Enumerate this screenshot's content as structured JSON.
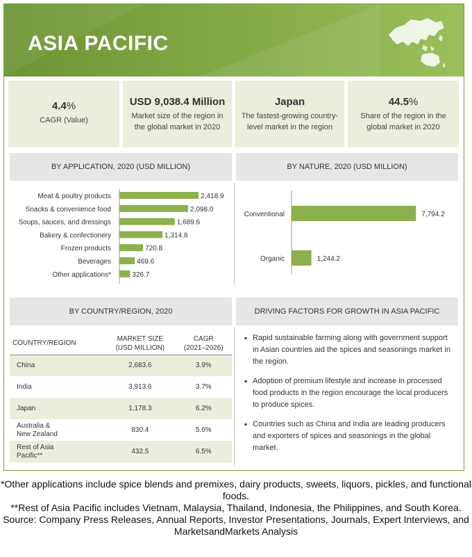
{
  "header": {
    "title": "ASIA PACIFIC"
  },
  "kpis": [
    {
      "value": "4.4",
      "unit": "%",
      "label": "CAGR (Value)"
    },
    {
      "value": "USD 9,038.4 Million",
      "unit": "",
      "label": "Market size of the region in the global market in 2020"
    },
    {
      "value": "Japan",
      "unit": "",
      "label": "The fastest-growing country-level market in the region"
    },
    {
      "value": "44.5",
      "unit": "%",
      "label": "Share of the region in the global market in 2020"
    }
  ],
  "application_chart": {
    "heading": "BY APPLICATION, 2020 (USD MILLION)",
    "bar_color": "#8cb04b"
  },
  "nature_chart": {
    "heading": "BY NATURE, 2020 (USD MILLION)",
    "bar_color": "#8cb04b"
  },
  "chart_data": [
    {
      "type": "bar",
      "orientation": "horizontal",
      "title": "BY APPLICATION, 2020 (USD MILLION)",
      "categories": [
        "Meat & poultry products",
        "Snacks & convenience food",
        "Soups, sauces, and dressings",
        "Bakery & confectionery",
        "Frozen products",
        "Beverages",
        "Other applications*"
      ],
      "values": [
        2418.9,
        2098.0,
        1689.6,
        1314.8,
        720.8,
        469.6,
        326.7
      ],
      "value_labels": [
        "2,418.9",
        "2,098.0",
        "1,689.6",
        "1,314.8",
        "720.8",
        "469.6",
        "326.7"
      ],
      "xlim": [
        0,
        2500
      ],
      "grid": false
    },
    {
      "type": "bar",
      "orientation": "horizontal",
      "title": "BY NATURE, 2020 (USD MILLION)",
      "categories": [
        "Conventional",
        "Organic"
      ],
      "values": [
        7794.2,
        1244.2
      ],
      "value_labels": [
        "7,794.2",
        "1,244.2"
      ],
      "xlim": [
        0,
        8000
      ],
      "grid": false
    },
    {
      "type": "table",
      "title": "BY COUNTRY/REGION, 2020",
      "columns": [
        "COUNTRY/REGION",
        "MARKET SIZE (USD MILLION)",
        "CAGR (2021-2026)"
      ],
      "rows": [
        [
          "China",
          "2,683.6",
          "3.9%"
        ],
        [
          "India",
          "3,913.6",
          "3.7%"
        ],
        [
          "Japan",
          "1,178.3",
          "6.2%"
        ],
        [
          "Australia & New Zealand",
          "830.4",
          "5.6%"
        ],
        [
          "Rest of Asia Pacific**",
          "432.5",
          "6.5%"
        ]
      ]
    }
  ],
  "country_table": {
    "heading": "BY COUNTRY/REGION, 2020",
    "col1": "COUNTRY/REGION",
    "col2_line1": "MARKET SIZE",
    "col2_line2": "(USD MILLION)",
    "col3_line1": "CAGR",
    "col3_line2": "(2021–2026)",
    "rows": [
      {
        "name_line1": "China",
        "name_line2": "",
        "size": "2,683.6",
        "cagr": "3.9%"
      },
      {
        "name_line1": "India",
        "name_line2": "",
        "size": "3,913.6",
        "cagr": "3.7%"
      },
      {
        "name_line1": "Japan",
        "name_line2": "",
        "size": "1,178.3",
        "cagr": "6.2%"
      },
      {
        "name_line1": "Australia &",
        "name_line2": "New Zealand",
        "size": "830.4",
        "cagr": "5.6%"
      },
      {
        "name_line1": "Rest of Asia",
        "name_line2": "Pacific**",
        "size": "432.5",
        "cagr": "6.5%"
      }
    ]
  },
  "driving_factors": {
    "heading": "DRIVING FACTORS FOR GROWTH IN ASIA PACIFIC",
    "items": [
      "Rapid sustainable farming along with government support in Asian countries aid the spices and seasonings market in the region.",
      "Adoption of premium lifestyle and increase in processed food products in the region encourage the local producers to produce spices.",
      "Countries such as China and India are leading producers and exporters of spices and seasonings in the global market."
    ]
  },
  "notes": {
    "note1": "*Other applications include spice blends and premixes, dairy products, sweets, liquors, pickles, and functional foods.",
    "note2": "**Rest of Asia Pacific includes Vietnam, Malaysia, Thailand, Indonesia, the Philippines, and South Korea.",
    "source": "Source: Company Press Releases, Annual Reports, Investor Presentations, Journals, Expert Interviews, and MarketsandMarkets Analysis"
  },
  "colors": {
    "header_green": "#7aa03c",
    "bar_green": "#8cb04b",
    "kpi_bg": "#e9eedd",
    "panel_head_bg": "#e6e6e6"
  }
}
